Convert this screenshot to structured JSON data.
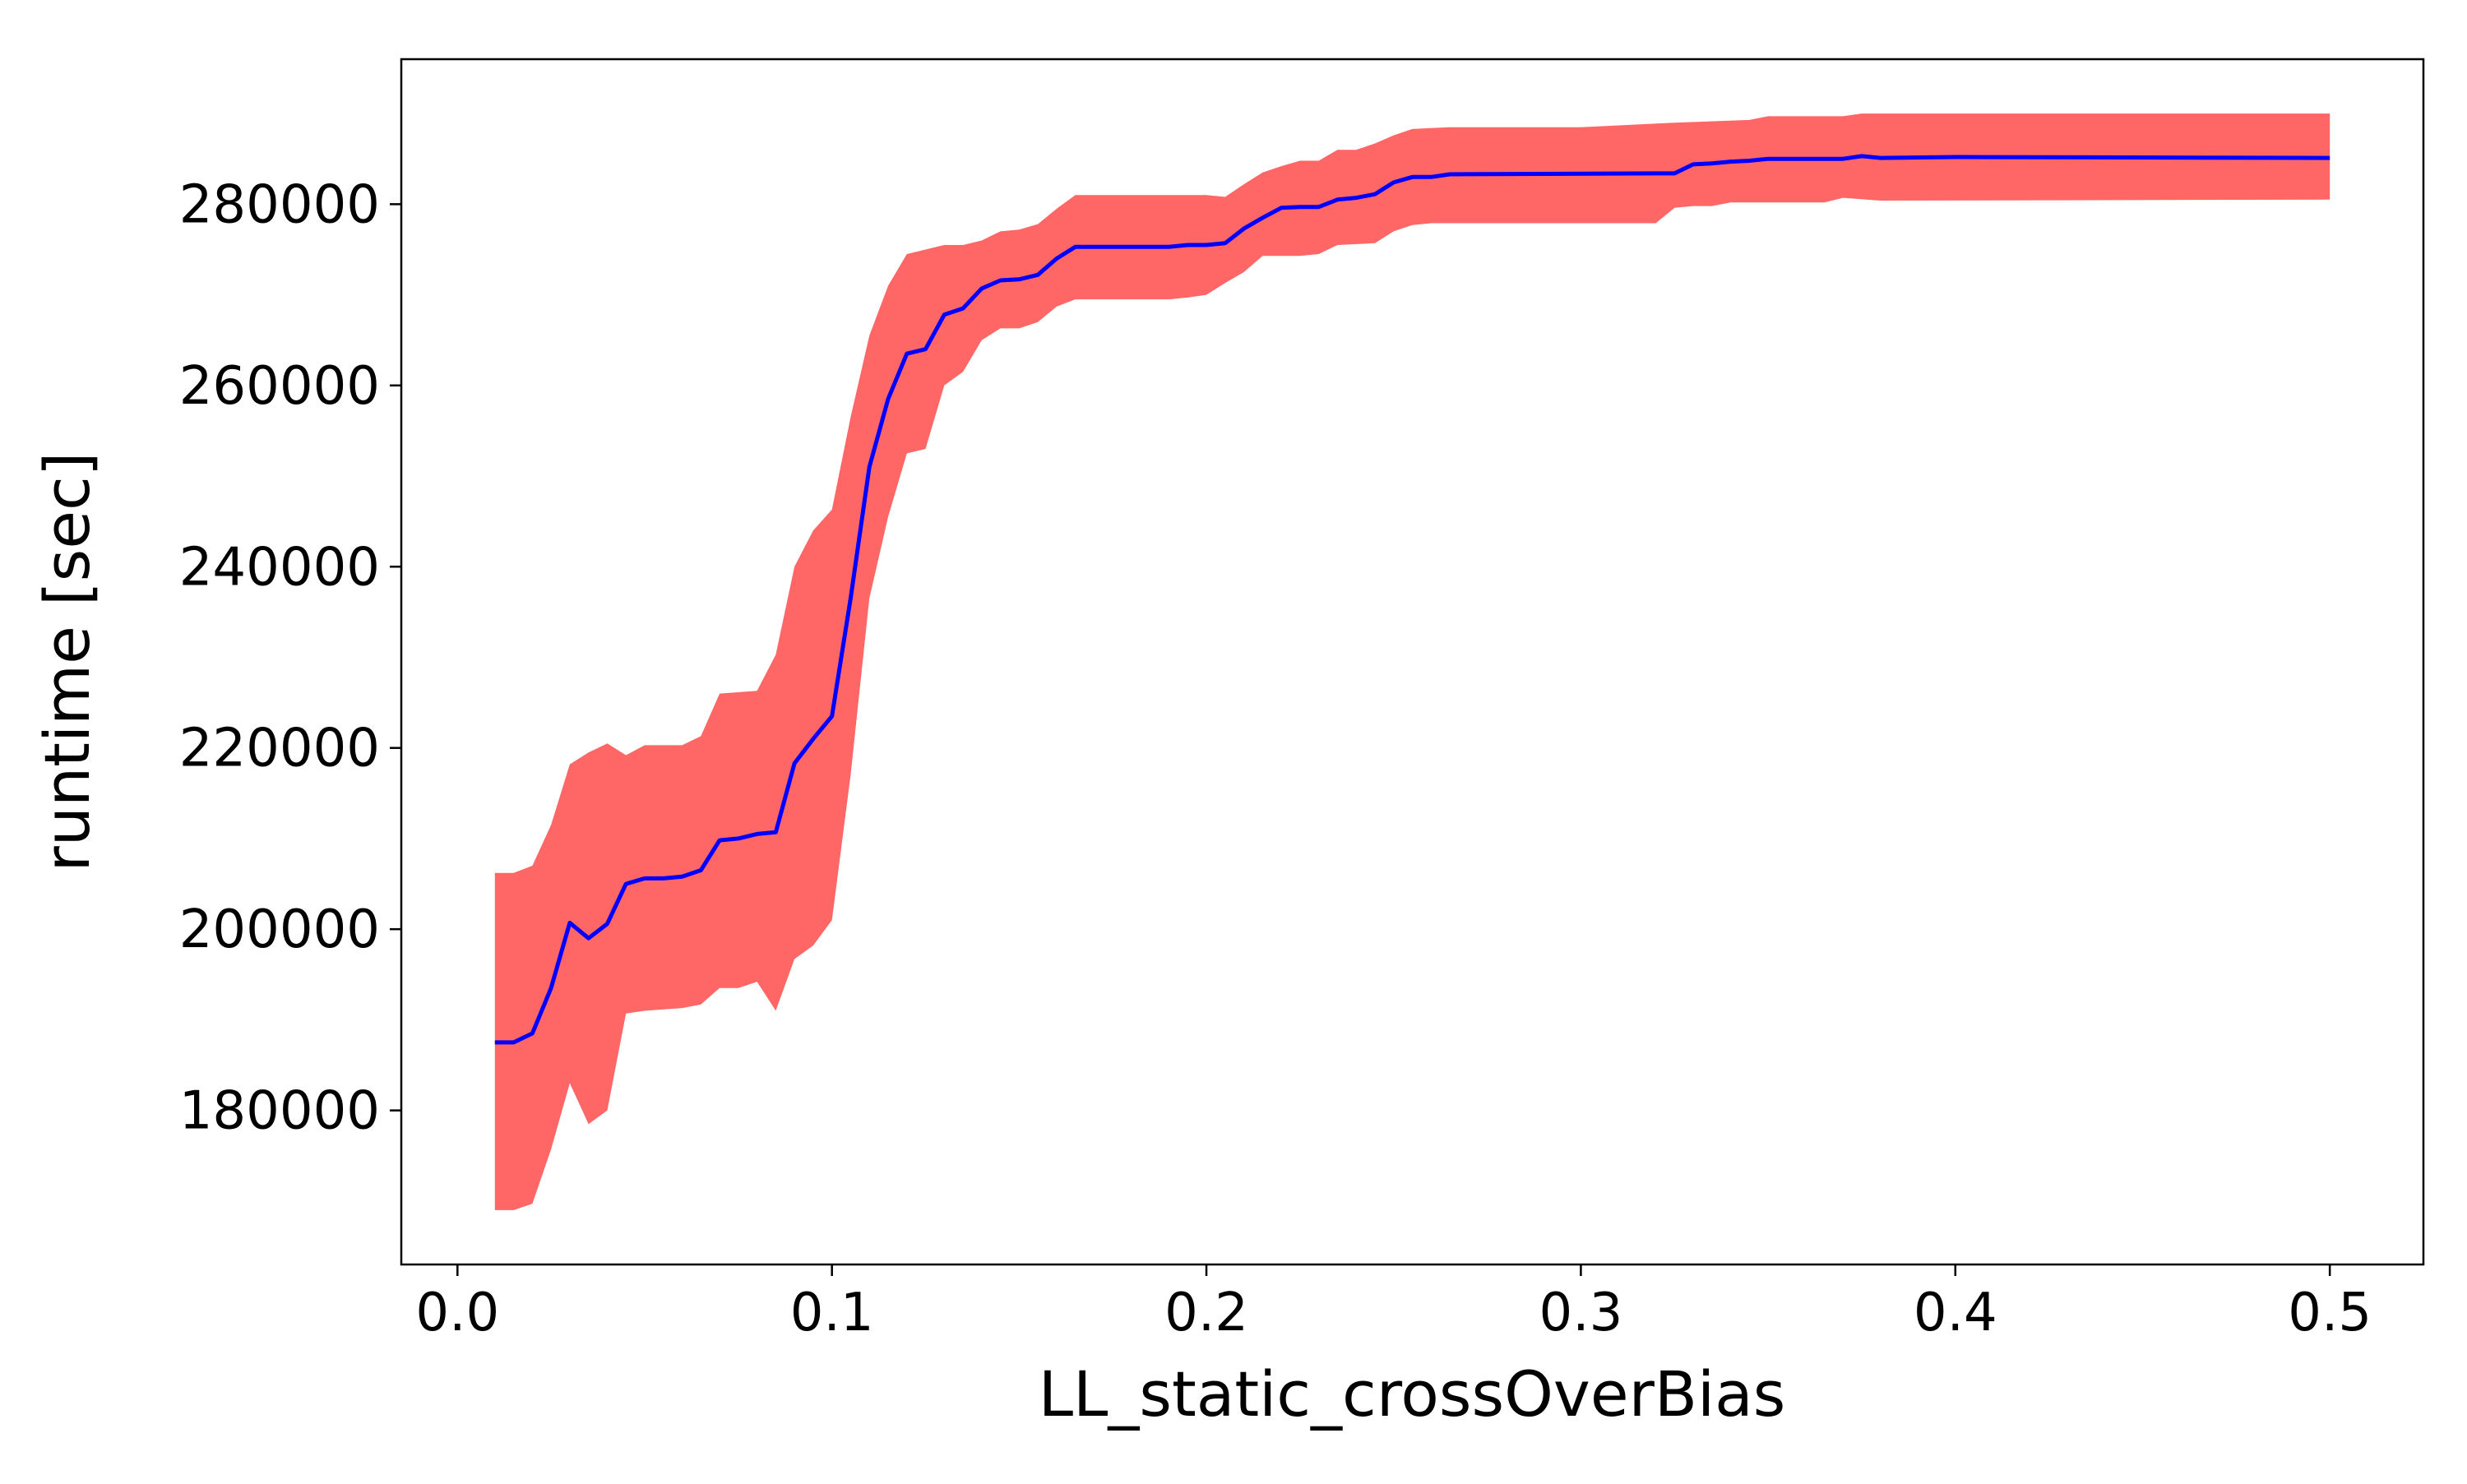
{
  "chart_data": {
    "type": "line",
    "title": "",
    "xlabel": "LL_static_crossOverBias",
    "ylabel": "runtime [sec]",
    "xlim": [
      -0.015,
      0.525
    ],
    "ylim": [
      163000,
      296000
    ],
    "xticks": [
      {
        "value": 0.0,
        "label": "0.0"
      },
      {
        "value": 0.1,
        "label": "0.1"
      },
      {
        "value": 0.2,
        "label": "0.2"
      },
      {
        "value": 0.3,
        "label": "0.3"
      },
      {
        "value": 0.4,
        "label": "0.4"
      },
      {
        "value": 0.5,
        "label": "0.5"
      }
    ],
    "yticks": [
      {
        "value": 180000,
        "label": "180000"
      },
      {
        "value": 200000,
        "label": "200000"
      },
      {
        "value": 220000,
        "label": "220000"
      },
      {
        "value": 240000,
        "label": "240000"
      },
      {
        "value": 260000,
        "label": "260000"
      },
      {
        "value": 280000,
        "label": "280000"
      }
    ],
    "grid": false,
    "legend": "none",
    "colors": {
      "mean_line": "#0000ff",
      "band": "#ff6666",
      "axes": "#000000"
    },
    "series": [
      {
        "role": "mean",
        "points": [
          [
            0.01,
            187500
          ],
          [
            0.015,
            187500
          ],
          [
            0.02,
            188500
          ],
          [
            0.025,
            193500
          ],
          [
            0.03,
            200700
          ],
          [
            0.035,
            199000
          ],
          [
            0.04,
            200600
          ],
          [
            0.045,
            205000
          ],
          [
            0.05,
            205600
          ],
          [
            0.055,
            205600
          ],
          [
            0.06,
            205800
          ],
          [
            0.065,
            206500
          ],
          [
            0.07,
            209800
          ],
          [
            0.075,
            210000
          ],
          [
            0.08,
            210500
          ],
          [
            0.085,
            210700
          ],
          [
            0.09,
            218300
          ],
          [
            0.095,
            221000
          ],
          [
            0.1,
            223500
          ],
          [
            0.105,
            236500
          ],
          [
            0.11,
            251000
          ],
          [
            0.115,
            258500
          ],
          [
            0.12,
            263500
          ],
          [
            0.125,
            264000
          ],
          [
            0.13,
            267800
          ],
          [
            0.135,
            268500
          ],
          [
            0.14,
            270700
          ],
          [
            0.145,
            271600
          ],
          [
            0.15,
            271700
          ],
          [
            0.155,
            272200
          ],
          [
            0.16,
            274000
          ],
          [
            0.165,
            275300
          ],
          [
            0.19,
            275300
          ],
          [
            0.195,
            275500
          ],
          [
            0.2,
            275500
          ],
          [
            0.205,
            275700
          ],
          [
            0.21,
            277300
          ],
          [
            0.215,
            278500
          ],
          [
            0.22,
            279600
          ],
          [
            0.225,
            279700
          ],
          [
            0.23,
            279700
          ],
          [
            0.235,
            280500
          ],
          [
            0.24,
            280700
          ],
          [
            0.245,
            281100
          ],
          [
            0.25,
            282400
          ],
          [
            0.255,
            283000
          ],
          [
            0.26,
            283000
          ],
          [
            0.265,
            283300
          ],
          [
            0.32,
            283400
          ],
          [
            0.325,
            283400
          ],
          [
            0.33,
            284400
          ],
          [
            0.335,
            284500
          ],
          [
            0.34,
            284700
          ],
          [
            0.345,
            284800
          ],
          [
            0.35,
            285000
          ],
          [
            0.37,
            285000
          ],
          [
            0.375,
            285300
          ],
          [
            0.38,
            285100
          ],
          [
            0.4,
            285200
          ],
          [
            0.5,
            285100
          ]
        ]
      },
      {
        "role": "upper-band",
        "points": [
          [
            0.01,
            206200
          ],
          [
            0.015,
            206200
          ],
          [
            0.02,
            207000
          ],
          [
            0.025,
            211500
          ],
          [
            0.03,
            218200
          ],
          [
            0.035,
            219500
          ],
          [
            0.04,
            220500
          ],
          [
            0.045,
            219200
          ],
          [
            0.05,
            220300
          ],
          [
            0.06,
            220300
          ],
          [
            0.065,
            221300
          ],
          [
            0.07,
            226000
          ],
          [
            0.08,
            226300
          ],
          [
            0.085,
            230300
          ],
          [
            0.09,
            240000
          ],
          [
            0.095,
            244000
          ],
          [
            0.1,
            246300
          ],
          [
            0.105,
            256500
          ],
          [
            0.11,
            265500
          ],
          [
            0.115,
            271000
          ],
          [
            0.12,
            274500
          ],
          [
            0.125,
            275000
          ],
          [
            0.13,
            275500
          ],
          [
            0.135,
            275500
          ],
          [
            0.14,
            276000
          ],
          [
            0.145,
            277000
          ],
          [
            0.15,
            277200
          ],
          [
            0.155,
            277800
          ],
          [
            0.16,
            279500
          ],
          [
            0.165,
            281000
          ],
          [
            0.185,
            281000
          ],
          [
            0.2,
            281000
          ],
          [
            0.205,
            280800
          ],
          [
            0.21,
            282200
          ],
          [
            0.215,
            283500
          ],
          [
            0.22,
            284200
          ],
          [
            0.225,
            284800
          ],
          [
            0.23,
            284800
          ],
          [
            0.235,
            286000
          ],
          [
            0.24,
            286000
          ],
          [
            0.245,
            286700
          ],
          [
            0.25,
            287600
          ],
          [
            0.255,
            288300
          ],
          [
            0.26,
            288400
          ],
          [
            0.265,
            288500
          ],
          [
            0.3,
            288500
          ],
          [
            0.325,
            289000
          ],
          [
            0.345,
            289300
          ],
          [
            0.35,
            289700
          ],
          [
            0.37,
            289700
          ],
          [
            0.375,
            290000
          ],
          [
            0.5,
            290000
          ]
        ]
      },
      {
        "role": "lower-band",
        "points": [
          [
            0.01,
            169000
          ],
          [
            0.015,
            169000
          ],
          [
            0.02,
            169700
          ],
          [
            0.025,
            175700
          ],
          [
            0.03,
            183000
          ],
          [
            0.035,
            178500
          ],
          [
            0.04,
            180000
          ],
          [
            0.045,
            190700
          ],
          [
            0.05,
            191000
          ],
          [
            0.06,
            191300
          ],
          [
            0.065,
            191700
          ],
          [
            0.07,
            193500
          ],
          [
            0.075,
            193500
          ],
          [
            0.08,
            194200
          ],
          [
            0.085,
            191000
          ],
          [
            0.09,
            196700
          ],
          [
            0.095,
            198200
          ],
          [
            0.1,
            201000
          ],
          [
            0.105,
            217000
          ],
          [
            0.11,
            236500
          ],
          [
            0.115,
            245500
          ],
          [
            0.12,
            252500
          ],
          [
            0.125,
            253000
          ],
          [
            0.13,
            260000
          ],
          [
            0.135,
            261500
          ],
          [
            0.14,
            265000
          ],
          [
            0.145,
            266300
          ],
          [
            0.15,
            266300
          ],
          [
            0.155,
            267000
          ],
          [
            0.16,
            268700
          ],
          [
            0.165,
            269500
          ],
          [
            0.19,
            269500
          ],
          [
            0.195,
            269700
          ],
          [
            0.2,
            270000
          ],
          [
            0.205,
            271300
          ],
          [
            0.21,
            272500
          ],
          [
            0.215,
            274300
          ],
          [
            0.225,
            274300
          ],
          [
            0.23,
            274500
          ],
          [
            0.235,
            275500
          ],
          [
            0.245,
            275700
          ],
          [
            0.25,
            277000
          ],
          [
            0.255,
            277700
          ],
          [
            0.26,
            277900
          ],
          [
            0.32,
            277900
          ],
          [
            0.325,
            279600
          ],
          [
            0.33,
            279800
          ],
          [
            0.335,
            279800
          ],
          [
            0.34,
            280200
          ],
          [
            0.365,
            280200
          ],
          [
            0.37,
            280700
          ],
          [
            0.38,
            280400
          ],
          [
            0.5,
            280500
          ]
        ]
      }
    ]
  }
}
